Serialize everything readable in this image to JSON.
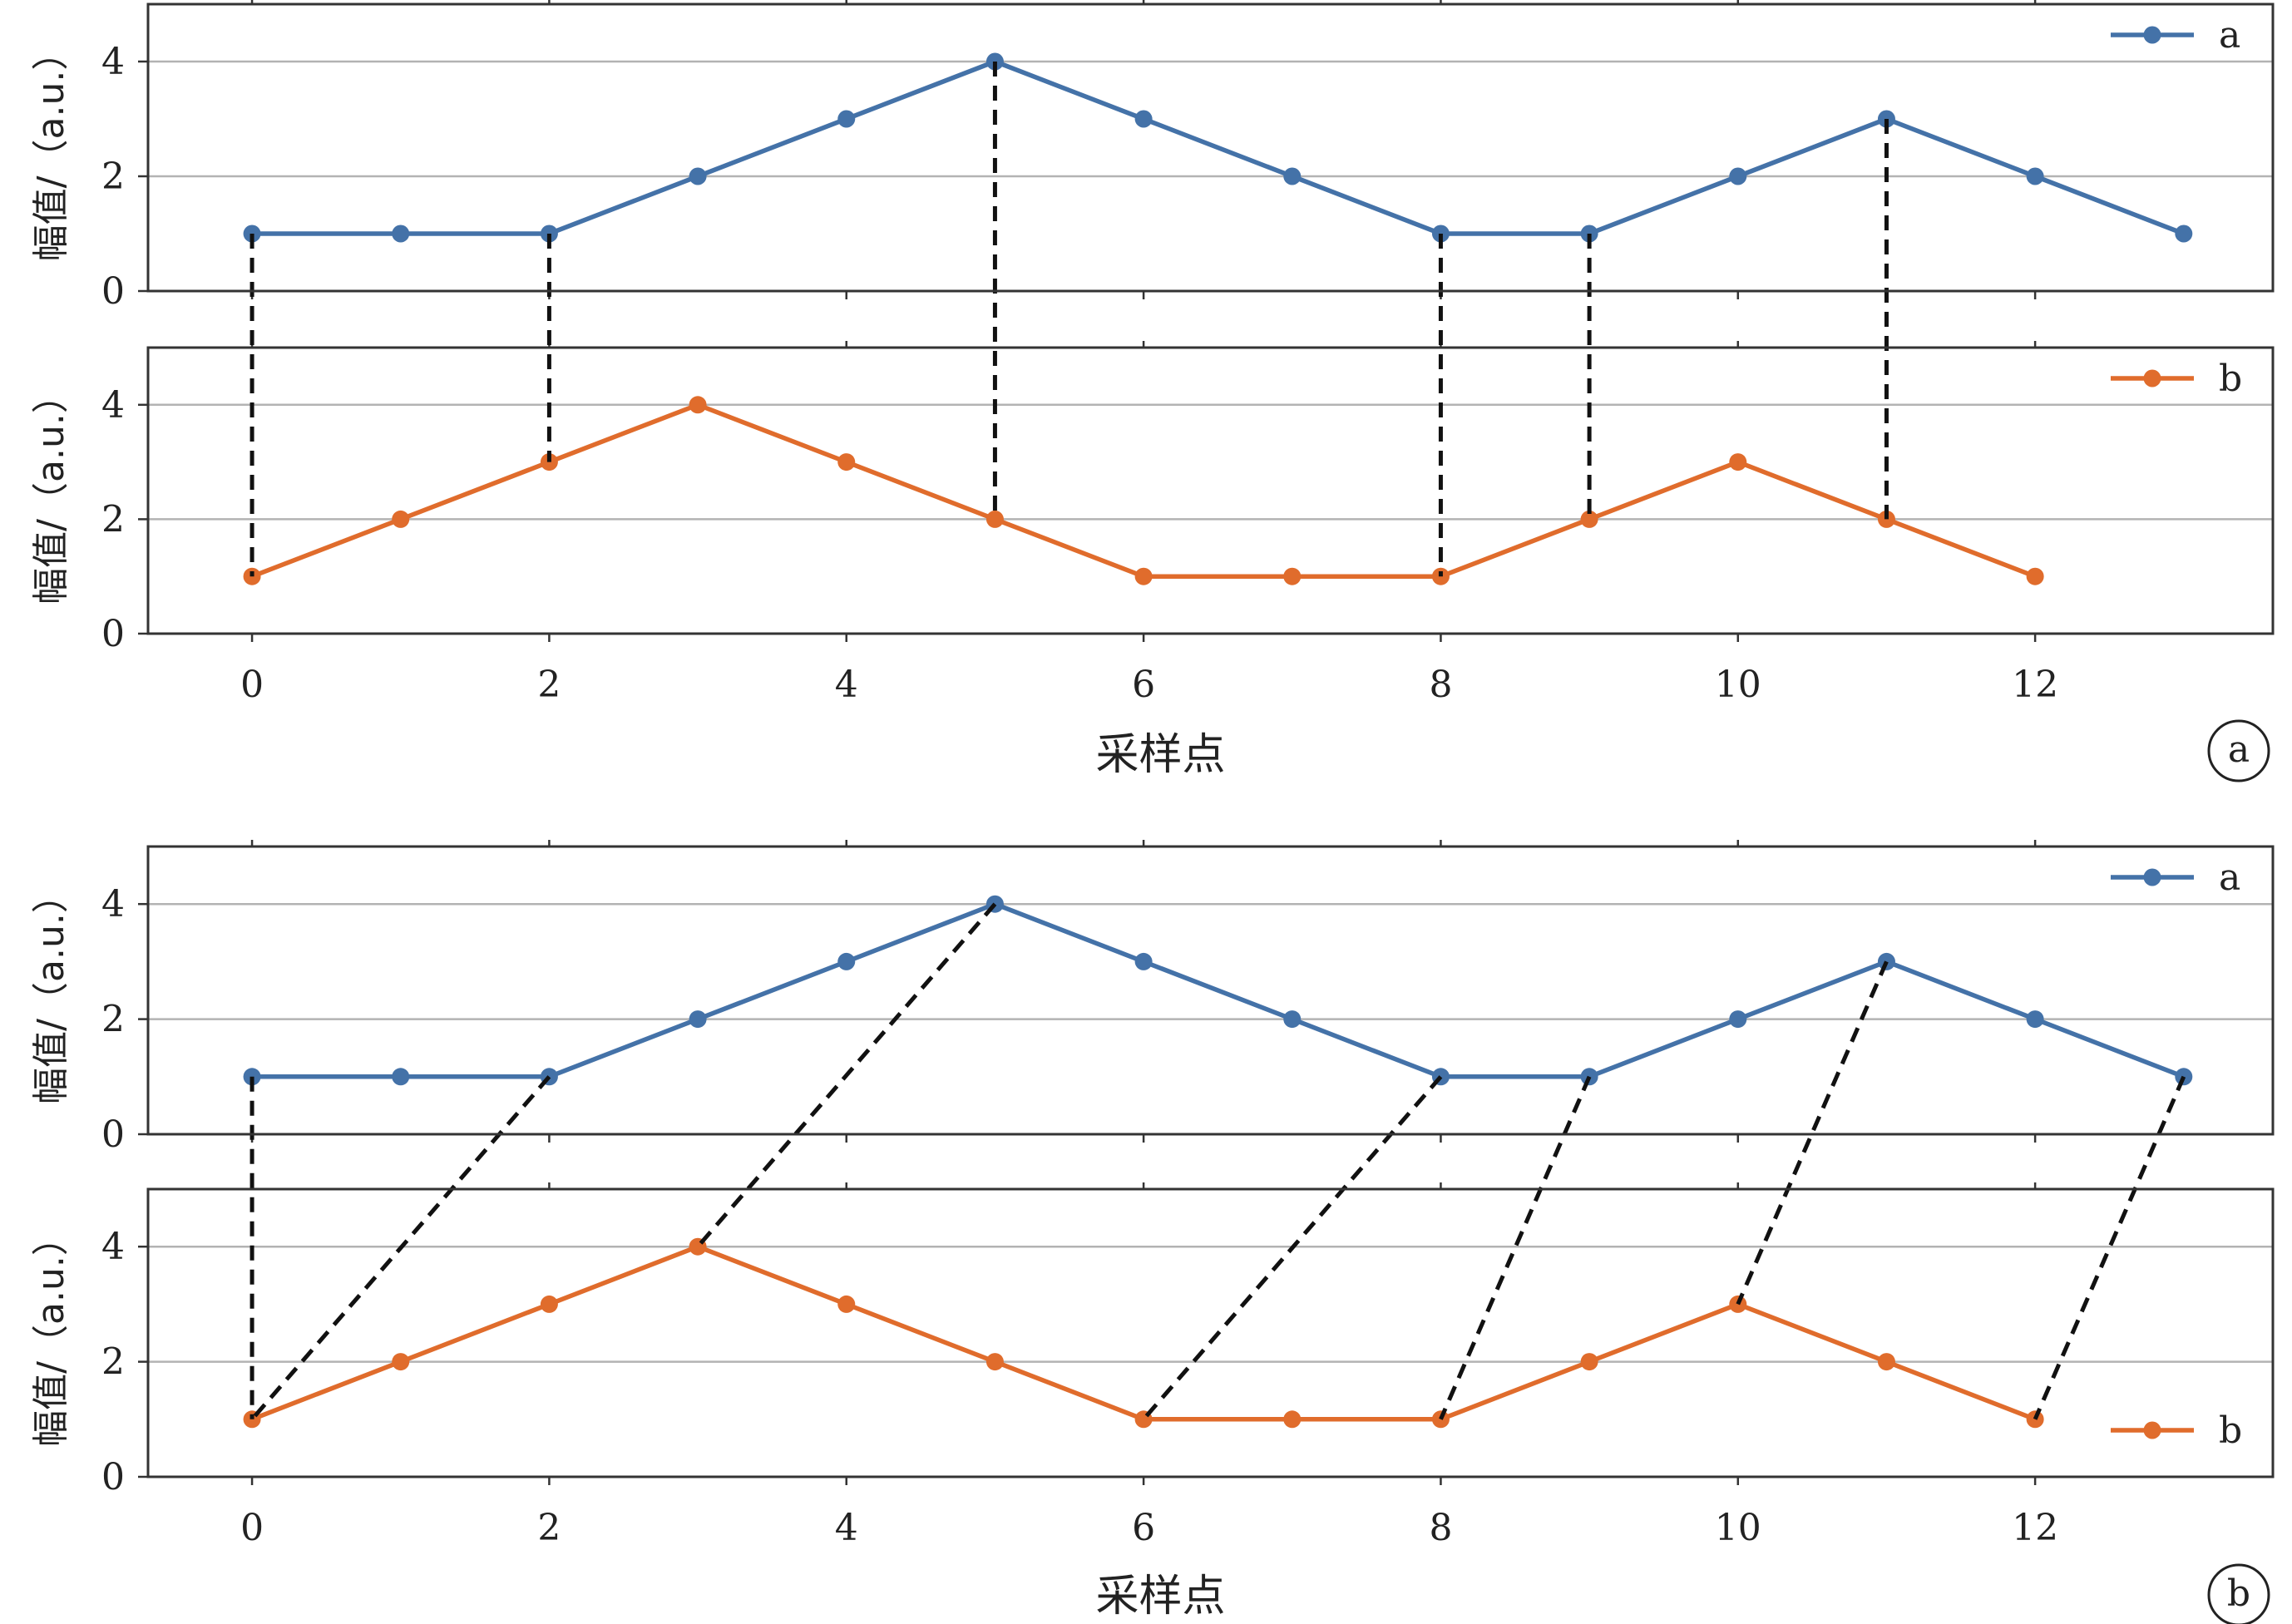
{
  "chart_data": [
    {
      "type": "line",
      "panel_label": "a",
      "xlabel": "采样点",
      "x_ticks": [
        0,
        2,
        4,
        6,
        8,
        10,
        12
      ],
      "xlim": [
        -0.7,
        13.6
      ],
      "subplots": [
        {
          "ylabel": "幅值/（a.u.）",
          "ylim": [
            0,
            5
          ],
          "y_ticks": [
            0,
            2,
            4
          ],
          "grid": true,
          "legend_position": "top-right",
          "series": [
            {
              "name": "a",
              "color": "#4472a8",
              "x": [
                0,
                1,
                2,
                3,
                4,
                5,
                6,
                7,
                8,
                9,
                10,
                11,
                12,
                13
              ],
              "values": [
                1,
                1,
                1,
                2,
                3,
                4,
                3,
                2,
                1,
                1,
                2,
                3,
                2,
                1
              ]
            }
          ]
        },
        {
          "ylabel": "幅值/（a.u.）",
          "ylim": [
            0,
            5
          ],
          "y_ticks": [
            0,
            2,
            4
          ],
          "grid": true,
          "legend_position": "top-right",
          "series": [
            {
              "name": "b",
              "color": "#e06c2c",
              "x": [
                0,
                1,
                2,
                3,
                4,
                5,
                6,
                7,
                8,
                9,
                10,
                11,
                12
              ],
              "values": [
                1,
                2,
                3,
                4,
                3,
                2,
                1,
                1,
                1,
                2,
                3,
                2,
                1
              ]
            }
          ]
        }
      ],
      "alignment_lines": [
        [
          0,
          0
        ],
        [
          2,
          2
        ],
        [
          5,
          5
        ],
        [
          8,
          8
        ],
        [
          9,
          9
        ],
        [
          11,
          11
        ]
      ]
    },
    {
      "type": "line",
      "panel_label": "b",
      "xlabel": "采样点",
      "x_ticks": [
        0,
        2,
        4,
        6,
        8,
        10,
        12
      ],
      "xlim": [
        -0.7,
        13.6
      ],
      "subplots": [
        {
          "ylabel": "幅值/（a.u.）",
          "ylim": [
            0,
            5
          ],
          "y_ticks": [
            0,
            2,
            4
          ],
          "grid": true,
          "legend_position": "top-right",
          "series": [
            {
              "name": "a",
              "color": "#4472a8",
              "x": [
                0,
                1,
                2,
                3,
                4,
                5,
                6,
                7,
                8,
                9,
                10,
                11,
                12,
                13
              ],
              "values": [
                1,
                1,
                1,
                2,
                3,
                4,
                3,
                2,
                1,
                1,
                2,
                3,
                2,
                1
              ]
            }
          ]
        },
        {
          "ylabel": "幅值/（a.u.）",
          "ylim": [
            0,
            5
          ],
          "y_ticks": [
            0,
            2,
            4
          ],
          "grid": true,
          "legend_position": "bottom-right",
          "series": [
            {
              "name": "b",
              "color": "#e06c2c",
              "x": [
                0,
                1,
                2,
                3,
                4,
                5,
                6,
                7,
                8,
                9,
                10,
                11,
                12
              ],
              "values": [
                1,
                2,
                3,
                4,
                3,
                2,
                1,
                1,
                1,
                2,
                3,
                2,
                1
              ]
            }
          ]
        }
      ],
      "alignment_lines": [
        [
          0,
          0
        ],
        [
          2,
          0
        ],
        [
          5,
          3
        ],
        [
          8,
          6
        ],
        [
          9,
          8
        ],
        [
          11,
          10
        ],
        [
          13,
          12
        ]
      ]
    }
  ]
}
